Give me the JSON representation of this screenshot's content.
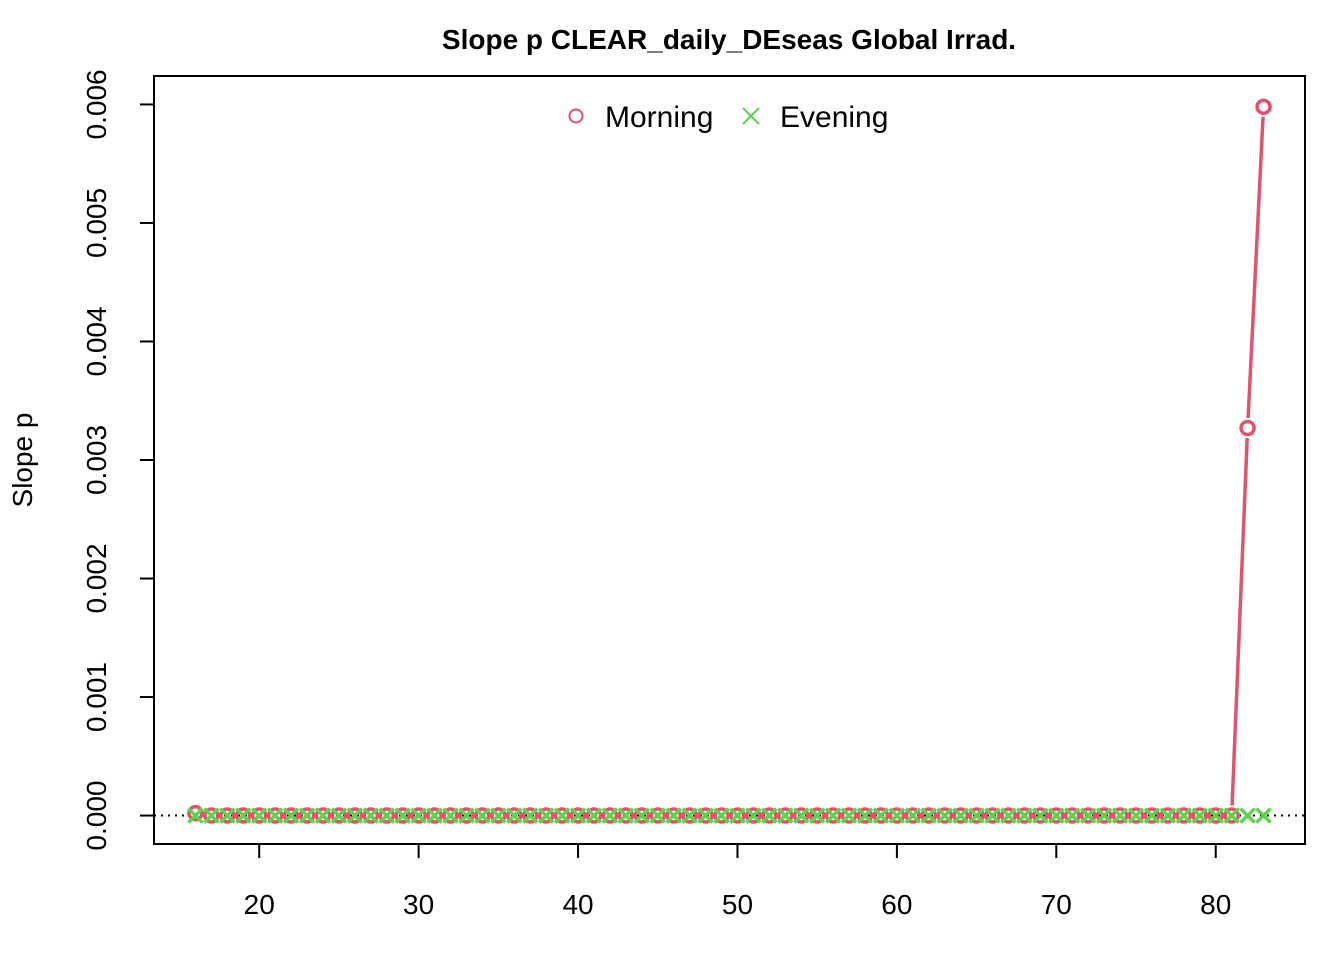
{
  "chart_data": {
    "type": "line",
    "title": "Slope p CLEAR_daily_DEseas Global Irrad.",
    "xlabel": "",
    "ylabel": "Slope p",
    "xlim": [
      13.4,
      85.6
    ],
    "ylim": [
      -0.00024,
      0.00624
    ],
    "x_ticks": [
      20,
      30,
      40,
      50,
      60,
      70,
      80
    ],
    "y_ticks": [
      0.0,
      0.001,
      0.002,
      0.003,
      0.004,
      0.005,
      0.006
    ],
    "y_tick_labels": [
      "0.000",
      "0.001",
      "0.002",
      "0.003",
      "0.004",
      "0.005",
      "0.006"
    ],
    "reference_line": {
      "y": 0,
      "style": "dotted"
    },
    "grid": false,
    "legend": {
      "position": "top-center",
      "entries": [
        {
          "label": "Morning",
          "marker": "circle",
          "color": "#DF536B"
        },
        {
          "label": "Evening",
          "marker": "cross",
          "color": "#61D04F"
        }
      ]
    },
    "series": [
      {
        "name": "Morning",
        "color": "#DF536B",
        "marker": "circle",
        "x": [
          16,
          17,
          18,
          19,
          20,
          21,
          22,
          23,
          24,
          25,
          26,
          27,
          28,
          29,
          30,
          31,
          32,
          33,
          34,
          35,
          36,
          37,
          38,
          39,
          40,
          41,
          42,
          43,
          44,
          45,
          46,
          47,
          48,
          49,
          50,
          51,
          52,
          53,
          54,
          55,
          56,
          57,
          58,
          59,
          60,
          61,
          62,
          63,
          64,
          65,
          66,
          67,
          68,
          69,
          70,
          71,
          72,
          73,
          74,
          75,
          76,
          77,
          78,
          79,
          80,
          81,
          82,
          83
        ],
        "y": [
          2e-05,
          0,
          0,
          0,
          0,
          0,
          0,
          0,
          0,
          0,
          0,
          0,
          0,
          0,
          0,
          0,
          0,
          0,
          0,
          0,
          0,
          0,
          0,
          0,
          0,
          0,
          0,
          0,
          0,
          0,
          0,
          0,
          0,
          0,
          0,
          0,
          0,
          0,
          0,
          0,
          0,
          0,
          0,
          0,
          0,
          0,
          0,
          0,
          0,
          0,
          0,
          0,
          0,
          0,
          0,
          0,
          0,
          0,
          0,
          0,
          0,
          0,
          0,
          0,
          0,
          0,
          0.00327,
          0.00598
        ]
      },
      {
        "name": "Evening",
        "color": "#61D04F",
        "marker": "cross",
        "x": [
          16,
          17,
          18,
          19,
          20,
          21,
          22,
          23,
          24,
          25,
          26,
          27,
          28,
          29,
          30,
          31,
          32,
          33,
          34,
          35,
          36,
          37,
          38,
          39,
          40,
          41,
          42,
          43,
          44,
          45,
          46,
          47,
          48,
          49,
          50,
          51,
          52,
          53,
          54,
          55,
          56,
          57,
          58,
          59,
          60,
          61,
          62,
          63,
          64,
          65,
          66,
          67,
          68,
          69,
          70,
          71,
          72,
          73,
          74,
          75,
          76,
          77,
          78,
          79,
          80,
          81,
          82,
          83
        ],
        "y": [
          0,
          0,
          0,
          0,
          0,
          0,
          0,
          0,
          0,
          0,
          0,
          0,
          0,
          0,
          0,
          0,
          0,
          0,
          0,
          0,
          0,
          0,
          0,
          0,
          0,
          0,
          0,
          0,
          0,
          0,
          0,
          0,
          0,
          0,
          0,
          0,
          0,
          0,
          0,
          0,
          0,
          0,
          0,
          0,
          0,
          0,
          0,
          0,
          0,
          0,
          0,
          0,
          0,
          0,
          0,
          0,
          0,
          0,
          0,
          0,
          0,
          0,
          0,
          0,
          0,
          0,
          0,
          0
        ]
      }
    ]
  }
}
